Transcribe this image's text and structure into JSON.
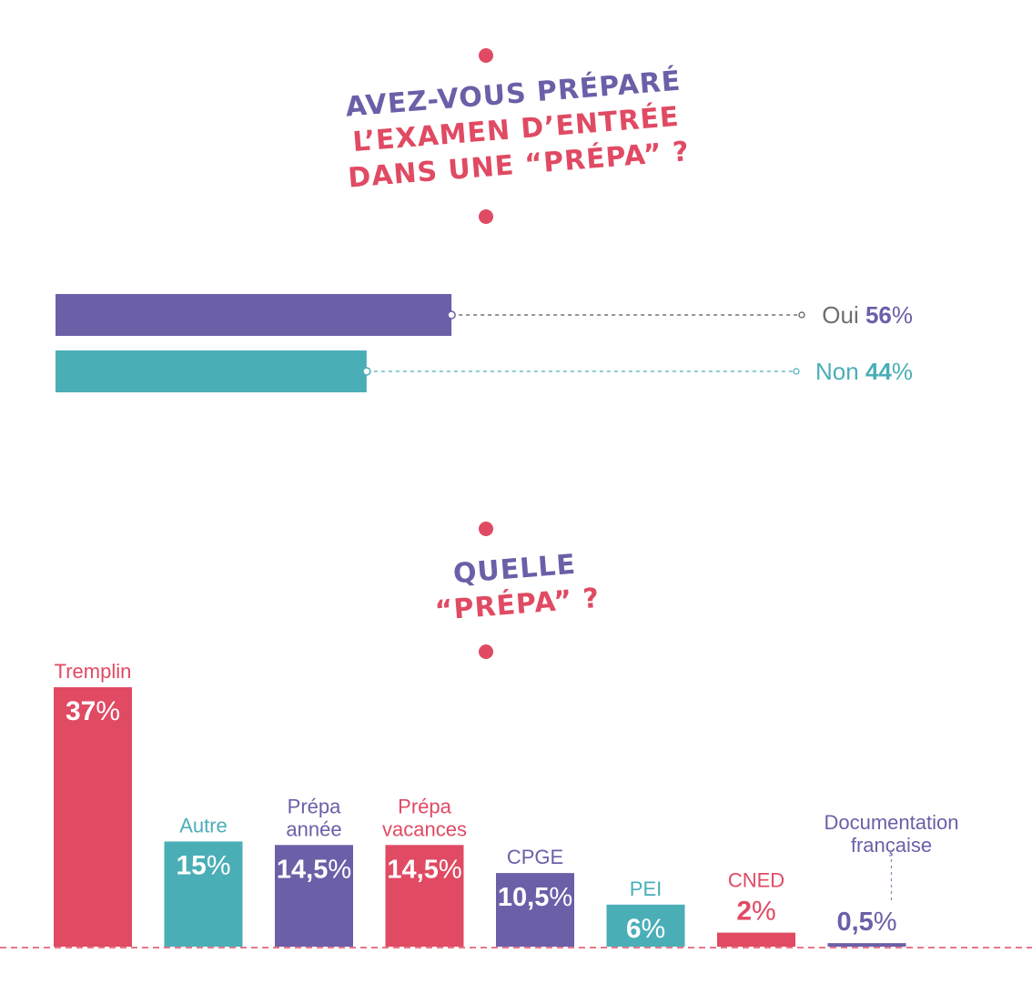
{
  "colors": {
    "purple": "#6b5fa8",
    "teal": "#4aaeb7",
    "pink": "#e04a63",
    "gray": "#6f6f6f"
  },
  "question1": {
    "line1": "AVEZ-VOUS PRÉPARÉ",
    "line2": "L’EXAMEN D’ENTRÉE",
    "line3": "DANS UNE “PRÉPA” ?"
  },
  "question2": {
    "line1": "QUELLE",
    "line2": "“PRÉPA” ?"
  },
  "chart_data": [
    {
      "type": "bar",
      "orientation": "horizontal",
      "categories": [
        "Oui",
        "Non"
      ],
      "values": [
        56,
        44
      ],
      "value_labels": [
        "56",
        "44"
      ],
      "unit": "%",
      "colors": [
        "#6b5fa8",
        "#4aaeb7"
      ],
      "xlim": [
        0,
        100
      ]
    },
    {
      "type": "bar",
      "orientation": "vertical",
      "categories": [
        "Tremplin",
        "Autre",
        "Prépa année",
        "Prépa vacances",
        "CPGE",
        "PEI",
        "CNED",
        "Documentation française"
      ],
      "category_lines": [
        [
          "Tremplin"
        ],
        [
          "Autre"
        ],
        [
          "Prépa",
          "année"
        ],
        [
          "Prépa",
          "vacances"
        ],
        [
          "CPGE"
        ],
        [
          "PEI"
        ],
        [
          "CNED"
        ],
        [
          "Documentation",
          "française"
        ]
      ],
      "values": [
        37,
        15,
        14.5,
        14.5,
        10.5,
        6,
        2,
        0.5
      ],
      "value_labels": [
        "37",
        "15",
        "14,5",
        "14,5",
        "10,5",
        "6",
        "2",
        "0,5"
      ],
      "unit": "%",
      "colors": [
        "#e04a63",
        "#4aaeb7",
        "#6b5fa8",
        "#e04a63",
        "#6b5fa8",
        "#4aaeb7",
        "#e04a63",
        "#6b5fa8"
      ],
      "ylim": [
        0,
        37
      ]
    }
  ]
}
